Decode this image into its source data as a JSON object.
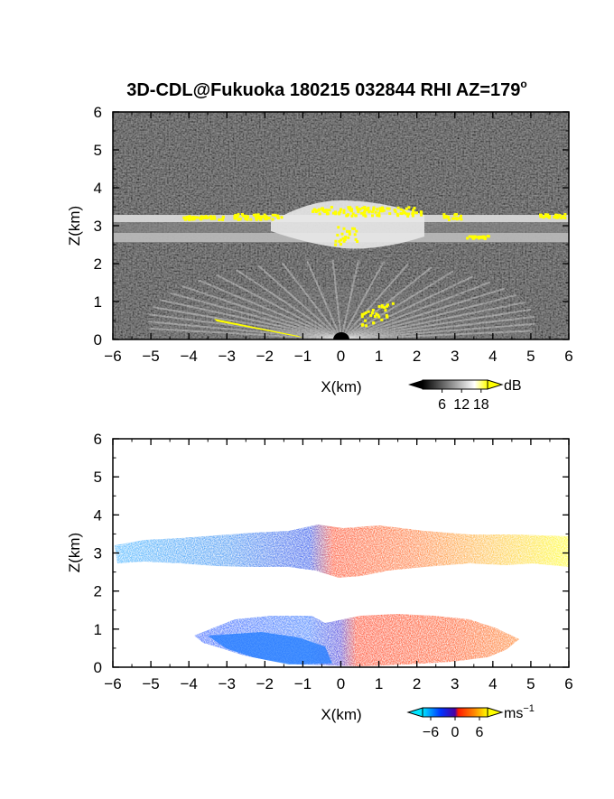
{
  "title": "3D-CDL@Fukuoka 180215 032844 RHI AZ=179",
  "title_superscript": "o",
  "chart_data": [
    {
      "type": "heatmap",
      "panel": "top",
      "quantity": "reflectivity",
      "xlabel": "X(km)",
      "ylabel": "Z(km)",
      "xlim": [
        -6,
        6
      ],
      "ylim": [
        0,
        6
      ],
      "xticks": [
        -6,
        -5,
        -4,
        -3,
        -2,
        -1,
        0,
        1,
        2,
        3,
        4,
        5,
        6
      ],
      "yticks": [
        0,
        1,
        2,
        3,
        4,
        5,
        6
      ],
      "colorbar": {
        "unit": "dB",
        "ticks": [
          6,
          12,
          18
        ],
        "range": [
          0,
          20
        ],
        "colors": [
          "#000000",
          "#ffffff",
          "#ffff00"
        ]
      },
      "features": [
        {
          "name": "bright layer",
          "x": [
            -6,
            6
          ],
          "z": [
            2.6,
            3.3
          ],
          "level": "12-20"
        },
        {
          "name": "fan near ground",
          "x": [
            -3.3,
            3.8
          ],
          "z": [
            0,
            1.3
          ],
          "level": "6-14"
        },
        {
          "name": "noise background",
          "level": "0-8"
        }
      ]
    },
    {
      "type": "heatmap",
      "panel": "bottom",
      "quantity": "radial velocity",
      "xlabel": "X(km)",
      "ylabel": "Z(km)",
      "xlim": [
        -6,
        6
      ],
      "ylim": [
        0,
        6
      ],
      "xticks": [
        -6,
        -5,
        -4,
        -3,
        -2,
        -1,
        0,
        1,
        2,
        3,
        4,
        5,
        6
      ],
      "yticks": [
        0,
        1,
        2,
        3,
        4,
        5,
        6
      ],
      "colorbar": {
        "unit": "ms",
        "unit_superscript": "−1",
        "ticks": [
          -6,
          0,
          6
        ],
        "range": [
          -8,
          8
        ],
        "colors": [
          "#00e5ff",
          "#0033ff",
          "#ff2200",
          "#ffff00"
        ]
      },
      "features": [
        {
          "name": "upper layer",
          "x": [
            -6,
            6
          ],
          "z": [
            2.5,
            3.6
          ],
          "velocity": [
            -6,
            6
          ]
        },
        {
          "name": "lower layer",
          "x": [
            -3.9,
            4.4
          ],
          "z": [
            0,
            1.4
          ],
          "velocity": [
            -4,
            3
          ]
        }
      ]
    }
  ]
}
